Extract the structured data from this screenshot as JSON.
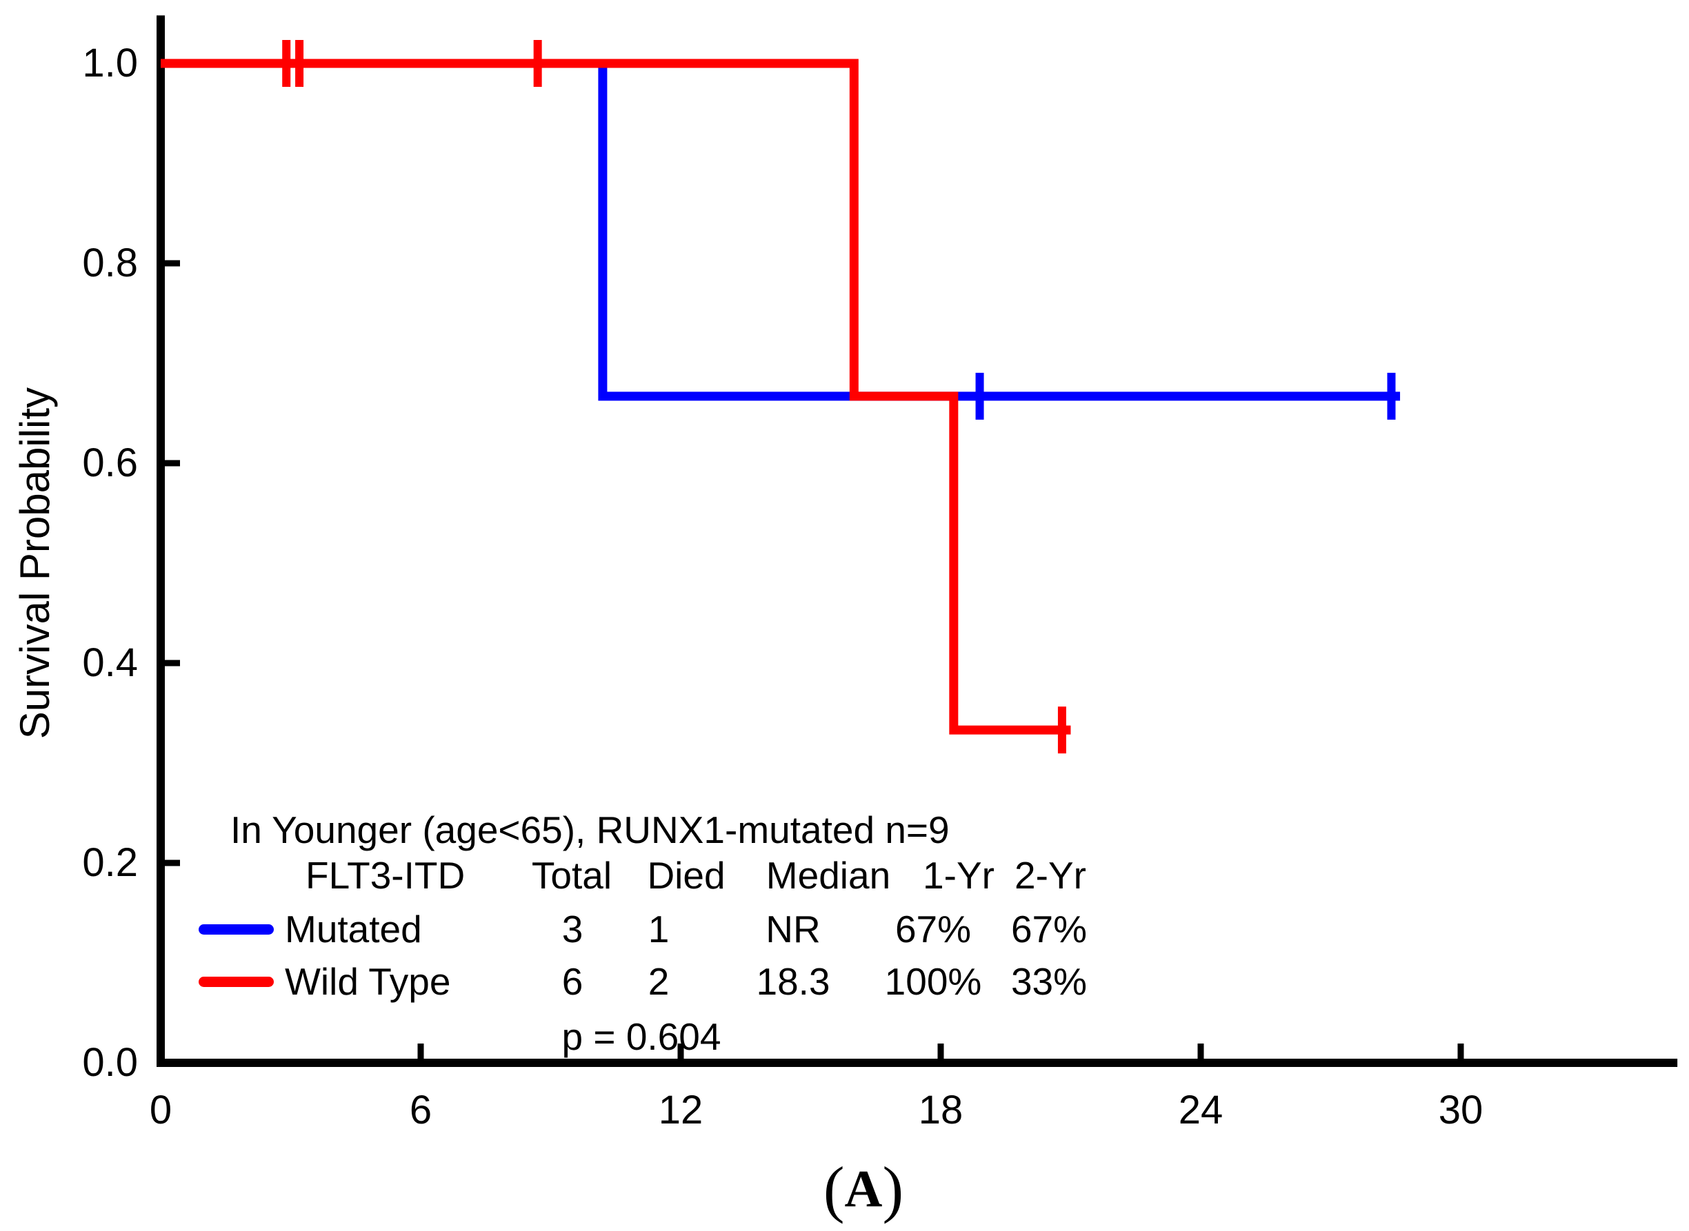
{
  "chart_data": {
    "type": "line",
    "subtype": "kaplan-meier-step",
    "xlabel": "",
    "ylabel": "Survival Probability",
    "xlim": [
      0,
      35
    ],
    "ylim": [
      0,
      1.048
    ],
    "x_ticks": [
      0,
      6,
      12,
      18,
      24,
      30
    ],
    "x_tick_labels": [
      "0",
      "6",
      "12",
      "18",
      "24",
      "30"
    ],
    "y_ticks": [
      1.0,
      0.8,
      0.6,
      0.4,
      0.2,
      0.0
    ],
    "y_tick_labels": [
      "1.0",
      "0.8",
      "0.6",
      "0.4",
      "0.2",
      "0.0"
    ],
    "grid": false,
    "series": [
      {
        "name": "Mutated",
        "color": "#0000FF",
        "steps": [
          [
            0,
            1.0
          ],
          [
            10.2,
            1.0
          ],
          [
            10.2,
            0.667
          ],
          [
            28.6,
            0.667
          ]
        ],
        "censors": [
          [
            18.9,
            0.667
          ],
          [
            28.4,
            0.667
          ]
        ]
      },
      {
        "name": "Wild Type",
        "color": "#FF0000",
        "steps": [
          [
            0,
            1.0
          ],
          [
            16.0,
            1.0
          ],
          [
            16.0,
            0.667
          ],
          [
            18.3,
            0.667
          ],
          [
            18.3,
            0.333
          ],
          [
            21.0,
            0.333
          ]
        ],
        "censors": [
          [
            2.9,
            1.0
          ],
          [
            3.2,
            1.0
          ],
          [
            8.7,
            1.0
          ],
          [
            20.8,
            0.333
          ]
        ]
      }
    ]
  },
  "legend": {
    "context": "In Younger (age<65), RUNX1-mutated n=9",
    "headers": [
      "FLT3-ITD",
      "Total",
      "Died",
      "Median",
      "1-Yr",
      "2-Yr"
    ],
    "rows": [
      {
        "name": "Mutated",
        "color": "#0000FF",
        "total": "3",
        "died": "1",
        "median": "NR",
        "yr1": "67%",
        "yr2": "67%"
      },
      {
        "name": "Wild Type",
        "color": "#FF0000",
        "total": "6",
        "died": "2",
        "median": "18.3",
        "yr1": "100%",
        "yr2": "33%"
      }
    ],
    "p_value": "p = 0.604"
  },
  "axes": {
    "y_title": "Survival Probability",
    "axis_color": "#000000"
  },
  "caption": {
    "full": "(A)",
    "open": "(",
    "letter": "A",
    "close": ")"
  }
}
